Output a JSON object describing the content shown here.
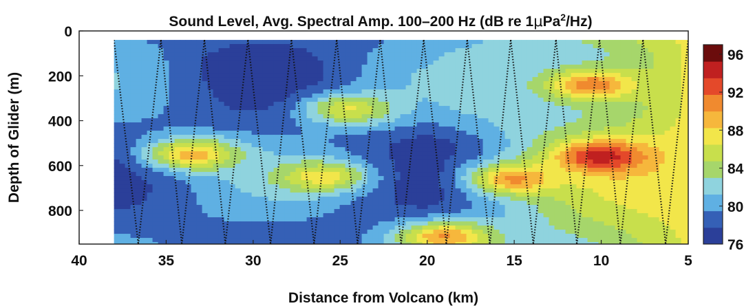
{
  "chart_data": {
    "type": "heatmap",
    "title": "Sound Level, Avg. Spectral Amp. 100–200 Hz  (dB re 1μPa²/Hz)",
    "title_parts": {
      "main": "Sound Level, Avg. Spectral Amp. 100–200 Hz  (dB re 1",
      "mu": "μ",
      "pa": "Pa",
      "sup": "2",
      "tail": "/Hz)"
    },
    "xlabel": "Distance from Volcano (km)",
    "ylabel": "Depth of Glider (m)",
    "xlim": [
      40,
      5
    ],
    "ylim": [
      0,
      950
    ],
    "x_ticks": [
      "40",
      "35",
      "30",
      "25",
      "20",
      "15",
      "10",
      "5"
    ],
    "x_tick_values": [
      40,
      35,
      30,
      25,
      20,
      15,
      10,
      5
    ],
    "y_ticks": [
      "0",
      "200",
      "400",
      "600",
      "800"
    ],
    "y_tick_values": [
      0,
      200,
      400,
      600,
      800
    ],
    "colorbar": {
      "ticks": [
        "96",
        "92",
        "88",
        "84",
        "80",
        "76"
      ],
      "tick_values": [
        96,
        92,
        88,
        84,
        80,
        76
      ],
      "range": [
        76,
        97
      ],
      "colors": [
        "#2b3f99",
        "#3560b6",
        "#5fb0e3",
        "#8fd3de",
        "#a6d66b",
        "#c8df4c",
        "#f2e64a",
        "#f6b73c",
        "#f08a2f",
        "#e4492a",
        "#c02020",
        "#6b0c0c"
      ]
    },
    "data_coverage": {
      "x_km": [
        38,
        5
      ],
      "depth_m": [
        40,
        950
      ]
    },
    "contour_levels_db": [
      78,
      80,
      82,
      84,
      86,
      88,
      90,
      92,
      94
    ],
    "features": [
      {
        "label": "low",
        "x_km": 30,
        "depth_m": 150,
        "level_db": 76
      },
      {
        "label": "low",
        "x_km": 20,
        "depth_m": 520,
        "level_db": 77
      },
      {
        "label": "high",
        "x_km": 10,
        "depth_m": 560,
        "level_db": 96
      },
      {
        "label": "high",
        "x_km": 10.5,
        "depth_m": 240,
        "level_db": 93
      },
      {
        "label": "high",
        "x_km": 33.5,
        "depth_m": 550,
        "level_db": 91
      },
      {
        "label": "high",
        "x_km": 15,
        "depth_m": 660,
        "level_db": 92
      },
      {
        "label": "high",
        "x_km": 19,
        "depth_m": 920,
        "level_db": 92
      },
      {
        "label": "high",
        "x_km": 24.5,
        "depth_m": 350,
        "level_db": 88
      },
      {
        "label": "high",
        "x_km": 26,
        "depth_m": 650,
        "level_db": 89
      }
    ]
  }
}
